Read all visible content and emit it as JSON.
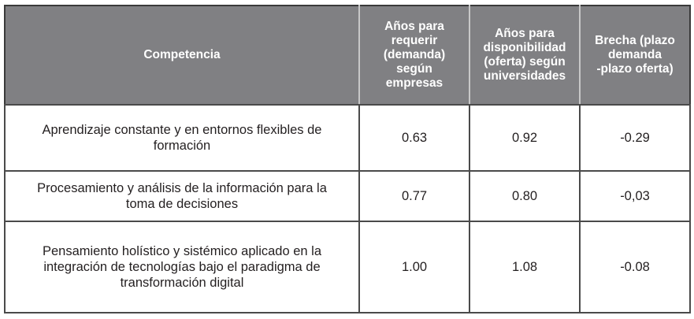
{
  "table": {
    "headers": [
      "Competencia",
      "Años para requerir (demanda) según empresas",
      "Años para disponibilidad (oferta) según universidades",
      "Brecha (plazo demanda -plazo oferta)"
    ],
    "header_lines": [
      [
        "Competencia"
      ],
      [
        "Años para",
        "requerir",
        "(demanda)",
        "según",
        "empresas"
      ],
      [
        "Años para",
        "disponibilidad",
        "(oferta) según",
        "universidades"
      ],
      [
        "Brecha (plazo",
        "demanda",
        "-plazo oferta)"
      ]
    ],
    "rows": [
      {
        "competencia": "Aprendizaje constante y en entornos flexibles de formación",
        "competencia_lines": [
          "Aprendizaje constante y en entornos flexibles de",
          "formación"
        ],
        "demanda": "0.63",
        "oferta": "0.92",
        "brecha": "-0.29"
      },
      {
        "competencia": "Procesamiento y análisis de la información para la toma de decisiones",
        "competencia_lines": [
          "Procesamiento y análisis de la información para la",
          "toma de decisiones"
        ],
        "demanda": "0.77",
        "oferta": "0.80",
        "brecha": "-0,03"
      },
      {
        "competencia": "Pensamiento holístico y sistémico aplicado en la integración de tecnologías bajo el paradigma de transformación digital",
        "competencia_lines": [
          "Pensamiento holístico y sistémico aplicado en la",
          "integración de tecnologías bajo el paradigma de",
          "transformación digital"
        ],
        "demanda": "1.00",
        "oferta": "1.08",
        "brecha": "-0.08"
      }
    ]
  },
  "colors": {
    "header_bg": "#808083",
    "header_text": "#ffffff",
    "body_text": "#231f20",
    "border": "#4a4a4a"
  }
}
